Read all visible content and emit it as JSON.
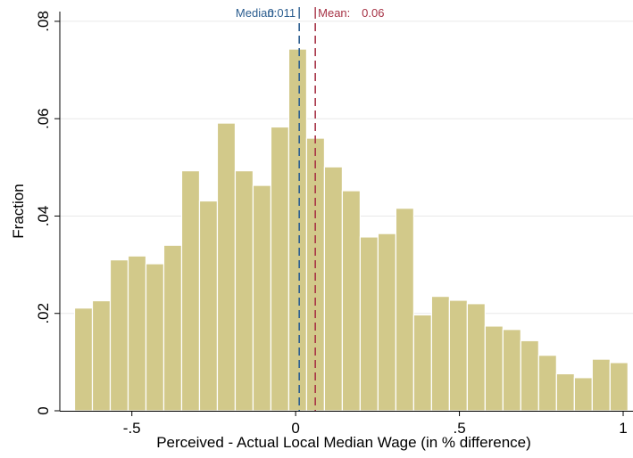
{
  "colors": {
    "bar_fill": "#d2c98a",
    "bar_stroke": "#ffffff",
    "grid": "#e9e9e9",
    "axis": "#000000",
    "median": "#2b5d8f",
    "mean": "#a63245"
  },
  "chart_data": {
    "type": "bar",
    "subtype": "histogram",
    "xlabel": "Perceived - Actual Local Median Wage (in % difference)",
    "ylabel": "Fraction",
    "xlim": [
      -0.72,
      1.03
    ],
    "ylim": [
      0,
      0.082
    ],
    "grid": true,
    "xticks": [
      {
        "value": -0.5,
        "label": "-.5"
      },
      {
        "value": 0,
        "label": "0"
      },
      {
        "value": 0.5,
        "label": ".5"
      },
      {
        "value": 1,
        "label": "1"
      }
    ],
    "yticks": [
      {
        "value": 0,
        "label": "0"
      },
      {
        "value": 0.02,
        "label": ".02"
      },
      {
        "value": 0.04,
        "label": ".04"
      },
      {
        "value": 0.06,
        "label": ".06"
      },
      {
        "value": 0.08,
        "label": ".08"
      }
    ],
    "bin_width": 0.0545,
    "bins": [
      {
        "x0": -0.675,
        "value": 0.0211
      },
      {
        "x0": -0.6205,
        "value": 0.0226
      },
      {
        "x0": -0.566,
        "value": 0.031
      },
      {
        "x0": -0.5115,
        "value": 0.0318
      },
      {
        "x0": -0.457,
        "value": 0.0302
      },
      {
        "x0": -0.4025,
        "value": 0.034
      },
      {
        "x0": -0.348,
        "value": 0.0493
      },
      {
        "x0": -0.2935,
        "value": 0.0431
      },
      {
        "x0": -0.239,
        "value": 0.0591
      },
      {
        "x0": -0.1845,
        "value": 0.0493
      },
      {
        "x0": -0.13,
        "value": 0.0463
      },
      {
        "x0": -0.0755,
        "value": 0.0583
      },
      {
        "x0": -0.021,
        "value": 0.0743
      },
      {
        "x0": 0.0335,
        "value": 0.056
      },
      {
        "x0": 0.088,
        "value": 0.0501
      },
      {
        "x0": 0.1425,
        "value": 0.0452
      },
      {
        "x0": 0.197,
        "value": 0.0357
      },
      {
        "x0": 0.2515,
        "value": 0.0364
      },
      {
        "x0": 0.306,
        "value": 0.0416
      },
      {
        "x0": 0.3605,
        "value": 0.0197
      },
      {
        "x0": 0.415,
        "value": 0.0235
      },
      {
        "x0": 0.4695,
        "value": 0.0227
      },
      {
        "x0": 0.524,
        "value": 0.022
      },
      {
        "x0": 0.5785,
        "value": 0.0174
      },
      {
        "x0": 0.633,
        "value": 0.0167
      },
      {
        "x0": 0.6875,
        "value": 0.0144
      },
      {
        "x0": 0.742,
        "value": 0.0114
      },
      {
        "x0": 0.7965,
        "value": 0.0076
      },
      {
        "x0": 0.851,
        "value": 0.0068
      },
      {
        "x0": 0.9055,
        "value": 0.0106
      },
      {
        "x0": 0.96,
        "value": 0.0099
      }
    ],
    "reference_lines": [
      {
        "label": "Median:",
        "value_label": "0.011",
        "x": 0.011,
        "style": "dashed",
        "color_key": "median"
      },
      {
        "label": "Mean:",
        "value_label": "0.06",
        "x": 0.06,
        "style": "dashed",
        "color_key": "mean"
      }
    ]
  }
}
